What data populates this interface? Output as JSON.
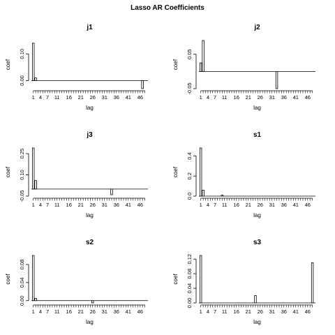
{
  "figure": {
    "title": "Lasso AR Coefficients"
  },
  "chart_data": [
    {
      "type": "bar",
      "title": "j1",
      "xlabel": "lag",
      "ylabel": "coef",
      "ylim": [
        -0.03,
        0.15
      ],
      "yticks": [
        0.0,
        0.1
      ],
      "ytick_labels": [
        "0.00",
        "0.10"
      ],
      "xtick_labels": [
        "1",
        "4",
        "7",
        "11",
        "16",
        "21",
        "26",
        "31",
        "36",
        "41",
        "46"
      ],
      "nlags": 48,
      "nonzero": [
        {
          "lag": 1,
          "value": 0.14
        },
        {
          "lag": 2,
          "value": 0.01
        },
        {
          "lag": 47,
          "value": -0.03
        }
      ]
    },
    {
      "type": "bar",
      "title": "j2",
      "xlabel": "lag",
      "ylabel": "coef",
      "ylim": [
        -0.05,
        0.09
      ],
      "yticks": [
        -0.05,
        0.05
      ],
      "ytick_labels": [
        "-0.05",
        "0.05"
      ],
      "xtick_labels": [
        "1",
        "4",
        "7",
        "11",
        "16",
        "21",
        "26",
        "31",
        "36",
        "41",
        "46"
      ],
      "nlags": 48,
      "nonzero": [
        {
          "lag": 1,
          "value": 0.025
        },
        {
          "lag": 2,
          "value": 0.09
        },
        {
          "lag": 33,
          "value": -0.05
        }
      ]
    },
    {
      "type": "bar",
      "title": "j3",
      "xlabel": "lag",
      "ylabel": "coef",
      "ylim": [
        -0.05,
        0.29
      ],
      "yticks": [
        -0.05,
        0.1,
        0.25
      ],
      "ytick_labels": [
        "-0.05",
        "0.10",
        "0.25"
      ],
      "xtick_labels": [
        "1",
        "4",
        "7",
        "11",
        "16",
        "21",
        "26",
        "31",
        "36",
        "41",
        "46"
      ],
      "nlags": 48,
      "nonzero": [
        {
          "lag": 1,
          "value": 0.29
        },
        {
          "lag": 2,
          "value": 0.06
        },
        {
          "lag": 34,
          "value": -0.04
        }
      ]
    },
    {
      "type": "bar",
      "title": "s1",
      "xlabel": "lag",
      "ylabel": "coef",
      "ylim": [
        0,
        0.48
      ],
      "yticks": [
        0.0,
        0.2,
        0.4
      ],
      "ytick_labels": [
        "0.0",
        "0.2",
        "0.4"
      ],
      "xtick_labels": [
        "1",
        "4",
        "7",
        "11",
        "16",
        "21",
        "26",
        "31",
        "36",
        "41",
        "46"
      ],
      "nlags": 48,
      "nonzero": [
        {
          "lag": 1,
          "value": 0.48
        },
        {
          "lag": 2,
          "value": 0.06
        },
        {
          "lag": 10,
          "value": 0.01
        }
      ]
    },
    {
      "type": "bar",
      "title": "s2",
      "xlabel": "lag",
      "ylabel": "coef",
      "ylim": [
        -0.005,
        0.1
      ],
      "yticks": [
        0.0,
        0.04,
        0.08
      ],
      "ytick_labels": [
        "0.00",
        "0.04",
        "0.08"
      ],
      "xtick_labels": [
        "1",
        "4",
        "7",
        "11",
        "16",
        "21",
        "26",
        "31",
        "36",
        "41",
        "46"
      ],
      "nlags": 48,
      "nonzero": [
        {
          "lag": 1,
          "value": 0.1
        },
        {
          "lag": 2,
          "value": 0.005
        },
        {
          "lag": 26,
          "value": -0.005
        }
      ]
    },
    {
      "type": "bar",
      "title": "s3",
      "xlabel": "lag",
      "ylabel": "coef",
      "ylim": [
        0,
        0.13
      ],
      "yticks": [
        0.0,
        0.04,
        0.08,
        0.12
      ],
      "ytick_labels": [
        "0.00",
        "0.04",
        "0.08",
        "0.12"
      ],
      "xtick_labels": [
        "1",
        "4",
        "7",
        "11",
        "16",
        "21",
        "26",
        "31",
        "36",
        "41",
        "46"
      ],
      "nlags": 48,
      "nonzero": [
        {
          "lag": 1,
          "value": 0.13
        },
        {
          "lag": 24,
          "value": 0.02
        },
        {
          "lag": 48,
          "value": 0.11
        }
      ]
    }
  ]
}
